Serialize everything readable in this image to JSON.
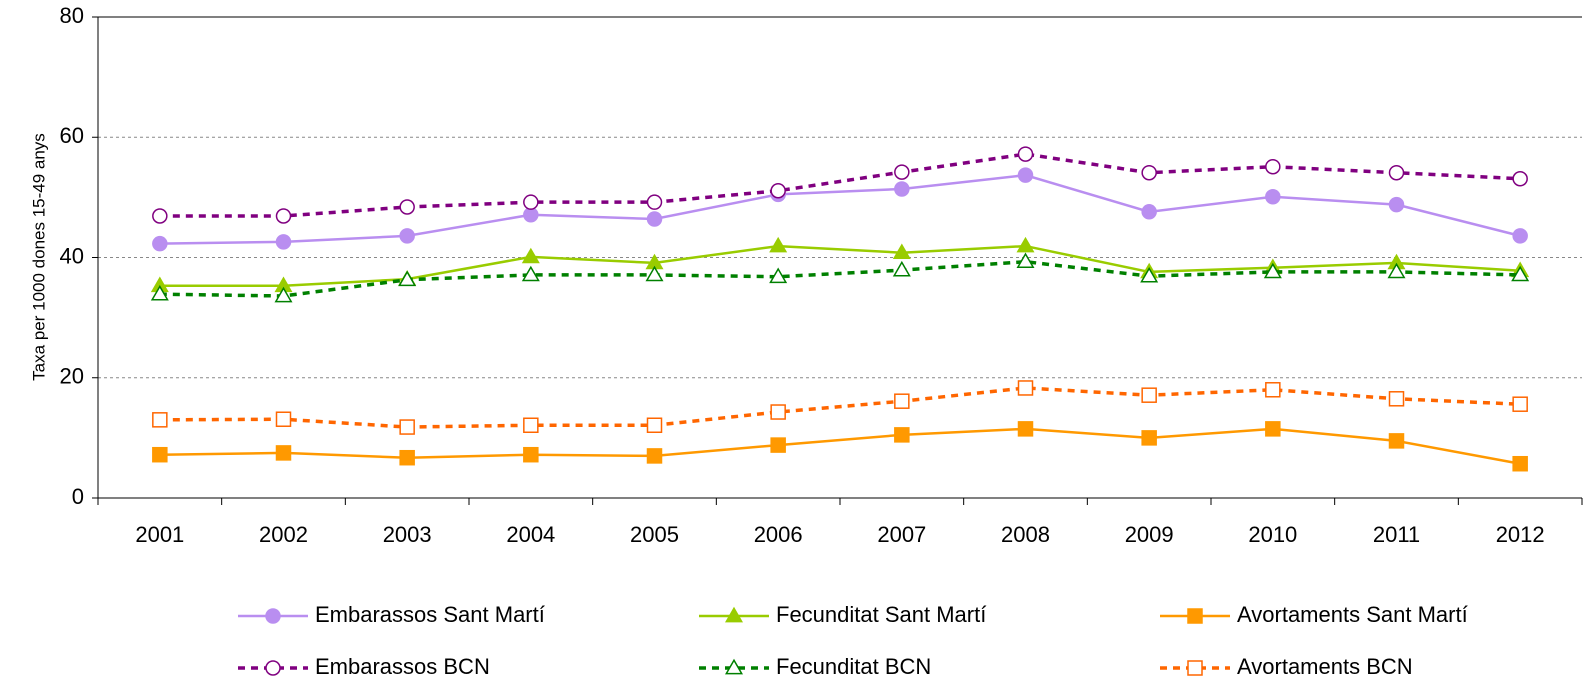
{
  "chart_data": {
    "type": "line",
    "ylabel": "Taxa per 1000 dones 15-49 anys",
    "categories": [
      "2001",
      "2002",
      "2003",
      "2004",
      "2005",
      "2006",
      "2007",
      "2008",
      "2009",
      "2010",
      "2011",
      "2012"
    ],
    "ylim": [
      0,
      80
    ],
    "yticks": [
      0,
      20,
      40,
      60,
      80
    ],
    "grid": true,
    "legend": "bottom",
    "series": [
      {
        "name": "Embarassos Sant Martí",
        "color": "#b98ef0",
        "dash": "solid",
        "marker": "circle",
        "filled": true,
        "values": [
          42.3,
          42.6,
          43.6,
          47.1,
          46.4,
          50.5,
          51.4,
          53.7,
          47.6,
          50.1,
          48.8,
          43.6
        ]
      },
      {
        "name": "Fecunditat Sant Martí",
        "color": "#99cc00",
        "dash": "solid",
        "marker": "triangle",
        "filled": true,
        "values": [
          35.3,
          35.3,
          36.4,
          40.1,
          39.1,
          41.9,
          40.8,
          41.9,
          37.6,
          38.3,
          39.1,
          37.8
        ]
      },
      {
        "name": "Avortaments Sant Martí",
        "color": "#ff9900",
        "dash": "solid",
        "marker": "square",
        "filled": true,
        "values": [
          7.2,
          7.5,
          6.7,
          7.2,
          7.0,
          8.8,
          10.5,
          11.5,
          10.0,
          11.5,
          9.5,
          5.7
        ]
      },
      {
        "name": "Embarassos BCN",
        "color": "#800080",
        "dash": "dashed",
        "marker": "circle",
        "filled": false,
        "values": [
          46.9,
          46.9,
          48.4,
          49.2,
          49.2,
          51.1,
          54.2,
          57.2,
          54.1,
          55.1,
          54.1,
          53.1
        ]
      },
      {
        "name": "Fecunditat BCN",
        "color": "#008000",
        "dash": "dashed",
        "marker": "triangle",
        "filled": false,
        "values": [
          33.9,
          33.6,
          36.3,
          37.1,
          37.1,
          36.8,
          37.9,
          39.3,
          36.9,
          37.6,
          37.6,
          37.1
        ]
      },
      {
        "name": "Avortaments BCN",
        "color": "#ff6600",
        "dash": "dashed",
        "marker": "square",
        "filled": false,
        "values": [
          13.0,
          13.1,
          11.8,
          12.1,
          12.1,
          14.3,
          16.1,
          18.3,
          17.1,
          18.0,
          16.5,
          15.6
        ]
      }
    ]
  }
}
